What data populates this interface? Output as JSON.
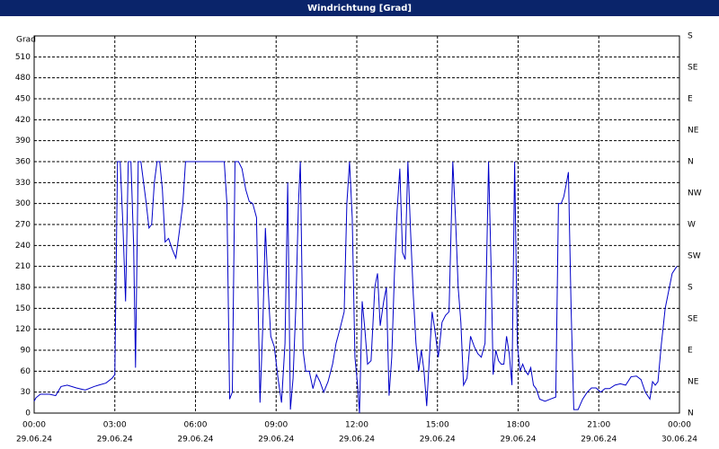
{
  "chart_data": {
    "type": "line",
    "title": "Windrichtung [Grad]",
    "y_label": "Grad",
    "xlim": [
      0,
      24
    ],
    "xticks": [
      {
        "value": 0,
        "label": "00:00",
        "date": "29.06.24"
      },
      {
        "value": 3,
        "label": "03:00",
        "date": "29.06.24"
      },
      {
        "value": 6,
        "label": "06:00",
        "date": "29.06.24"
      },
      {
        "value": 9,
        "label": "09:00",
        "date": "29.06.24"
      },
      {
        "value": 12,
        "label": "12:00",
        "date": "29.06.24"
      },
      {
        "value": 15,
        "label": "15:00",
        "date": "29.06.24"
      },
      {
        "value": 18,
        "label": "18:00",
        "date": "29.06.24"
      },
      {
        "value": 21,
        "label": "21:00",
        "date": "29.06.24"
      },
      {
        "value": 24,
        "label": "00:00",
        "date": "30.06.24"
      }
    ],
    "ylim": [
      0,
      540
    ],
    "yticks": [
      0,
      30,
      60,
      90,
      120,
      150,
      180,
      210,
      240,
      270,
      300,
      330,
      360,
      390,
      420,
      450,
      480,
      510
    ],
    "y2lim": [
      0,
      540
    ],
    "y2ticks": [
      {
        "value": 0,
        "label": "N"
      },
      {
        "value": 45,
        "label": "NE"
      },
      {
        "value": 90,
        "label": "E"
      },
      {
        "value": 135,
        "label": "SE"
      },
      {
        "value": 180,
        "label": "S"
      },
      {
        "value": 225,
        "label": "SW"
      },
      {
        "value": 270,
        "label": "W"
      },
      {
        "value": 315,
        "label": "NW"
      },
      {
        "value": 360,
        "label": "N"
      },
      {
        "value": 405,
        "label": "NE"
      },
      {
        "value": 450,
        "label": "E"
      },
      {
        "value": 495,
        "label": "SE"
      },
      {
        "value": 540,
        "label": "S"
      }
    ],
    "grid": true,
    "series": [
      {
        "color": "#0000c8",
        "x": [
          0,
          0.07,
          0.23,
          0.57,
          0.8,
          1,
          1.23,
          1.57,
          1.9,
          2.23,
          2.4,
          2.67,
          2.9,
          3,
          3.1,
          3.2,
          3.3,
          3.4,
          3.5,
          3.6,
          3.7,
          3.77,
          3.87,
          3.97,
          4.07,
          4.17,
          4.27,
          4.37,
          4.47,
          4.57,
          4.67,
          4.77,
          4.87,
          5,
          5.13,
          5.27,
          5.4,
          5.53,
          5.63,
          7.07,
          7.17,
          7.27,
          7.37,
          7.47,
          7.6,
          7.73,
          7.87,
          8,
          8.13,
          8.27,
          8.4,
          8.5,
          8.6,
          8.7,
          8.8,
          8.93,
          9.07,
          9.2,
          9.33,
          9.43,
          9.53,
          9.63,
          9.73,
          9.83,
          9.9,
          10,
          10.1,
          10.23,
          10.37,
          10.5,
          10.63,
          10.77,
          10.93,
          11.1,
          11.23,
          11.37,
          11.53,
          11.63,
          11.73,
          11.83,
          11.93,
          12.03,
          12.1,
          12.2,
          12.3,
          12.4,
          12.53,
          12.67,
          12.77,
          12.87,
          13,
          13.1,
          13.2,
          13.3,
          13.4,
          13.5,
          13.6,
          13.7,
          13.8,
          13.9,
          14,
          14.1,
          14.2,
          14.3,
          14.4,
          14.5,
          14.6,
          14.7,
          14.8,
          14.9,
          15.03,
          15.17,
          15.3,
          15.43,
          15.57,
          15.67,
          15.77,
          15.87,
          15.97,
          16.1,
          16.23,
          16.37,
          16.5,
          16.63,
          16.77,
          16.9,
          17,
          17.07,
          17.17,
          17.27,
          17.37,
          17.47,
          17.57,
          17.67,
          17.77,
          17.87,
          17.97,
          18.07,
          18.17,
          18.27,
          18.37,
          18.47,
          18.57,
          18.67,
          18.8,
          19,
          19.2,
          19.4,
          19.5,
          19.6,
          19.7,
          19.8,
          19.87,
          19.97,
          20.07,
          20.23,
          20.4,
          20.57,
          20.73,
          20.9,
          21.07,
          21.23,
          21.4,
          21.6,
          21.8,
          22,
          22.2,
          22.4,
          22.57,
          22.73,
          22.9,
          23,
          23.1,
          23.2,
          23.33,
          23.47,
          23.6,
          23.73,
          23.9
        ],
        "values": [
          17,
          22,
          27,
          27,
          25,
          38,
          40,
          36,
          33,
          38,
          40,
          43,
          50,
          55,
          360,
          360,
          270,
          160,
          360,
          360,
          240,
          65,
          360,
          360,
          330,
          300,
          265,
          270,
          330,
          360,
          360,
          320,
          245,
          250,
          235,
          222,
          260,
          300,
          360,
          360,
          300,
          20,
          30,
          360,
          360,
          350,
          320,
          303,
          300,
          280,
          15,
          120,
          265,
          180,
          110,
          95,
          50,
          15,
          100,
          330,
          5,
          50,
          150,
          300,
          360,
          90,
          60,
          60,
          35,
          55,
          45,
          30,
          45,
          70,
          100,
          120,
          145,
          300,
          360,
          280,
          80,
          40,
          0,
          160,
          120,
          70,
          75,
          180,
          200,
          125,
          160,
          180,
          25,
          80,
          200,
          290,
          350,
          230,
          220,
          360,
          260,
          170,
          100,
          60,
          90,
          60,
          10,
          80,
          145,
          120,
          80,
          130,
          140,
          145,
          360,
          280,
          180,
          130,
          40,
          50,
          110,
          95,
          85,
          80,
          100,
          360,
          200,
          55,
          90,
          75,
          70,
          70,
          110,
          85,
          40,
          360,
          100,
          60,
          70,
          60,
          55,
          65,
          40,
          35,
          20,
          17,
          20,
          23,
          300,
          300,
          310,
          330,
          345,
          150,
          5,
          5,
          20,
          30,
          36,
          36,
          30,
          35,
          35,
          40,
          42,
          40,
          52,
          53,
          48,
          30,
          20,
          45,
          40,
          45,
          100,
          150,
          175,
          200,
          210
        ]
      }
    ]
  }
}
